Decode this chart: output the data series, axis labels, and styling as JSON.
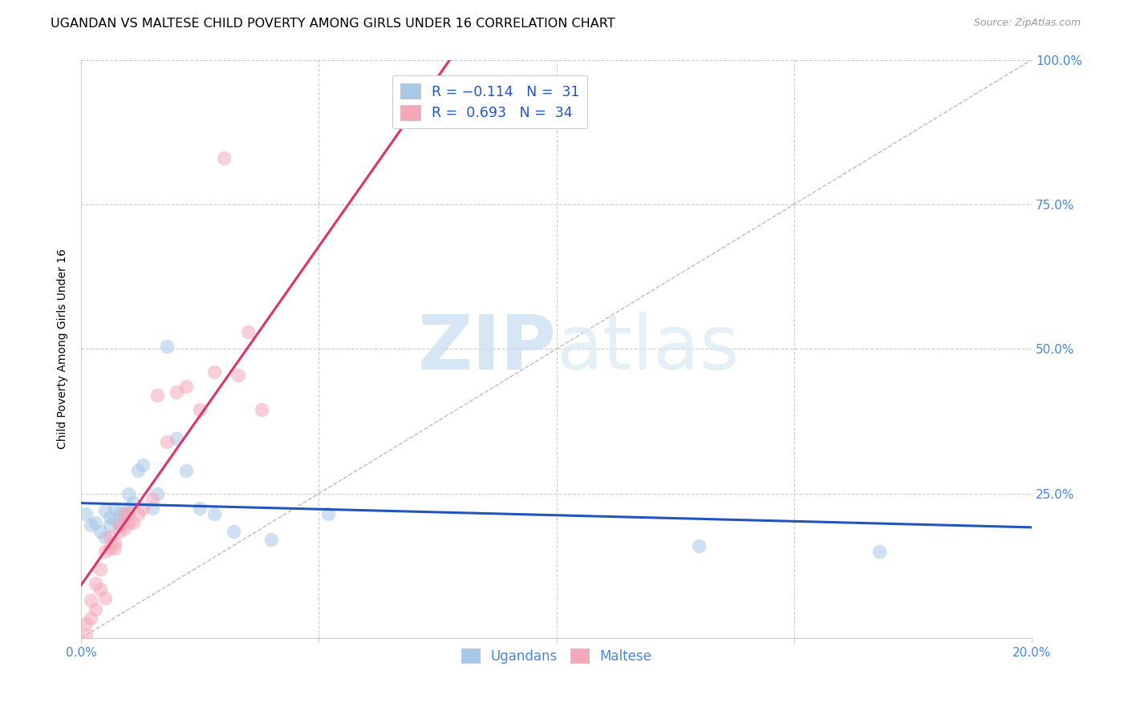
{
  "title": "UGANDAN VS MALTESE CHILD POVERTY AMONG GIRLS UNDER 16 CORRELATION CHART",
  "source": "Source: ZipAtlas.com",
  "ylabel": "Child Poverty Among Girls Under 16",
  "xlim": [
    0.0,
    0.2
  ],
  "ylim": [
    0.0,
    1.0
  ],
  "xticks": [
    0.0,
    0.05,
    0.1,
    0.15,
    0.2
  ],
  "yticks": [
    0.0,
    0.25,
    0.5,
    0.75,
    1.0
  ],
  "xticklabels": [
    "0.0%",
    "",
    "",
    "",
    "20.0%"
  ],
  "yticklabels_right": [
    "",
    "25.0%",
    "50.0%",
    "75.0%",
    "100.0%"
  ],
  "blue_color": "#A8C8E8",
  "pink_color": "#F4A8B8",
  "blue_line_color": "#2255BB",
  "pink_line_color": "#DD3366",
  "legend_text_color": "#2255BB",
  "blue_R": -0.114,
  "pink_R": 0.693,
  "ugandan_x": [
    0.001,
    0.002,
    0.003,
    0.004,
    0.005,
    0.005,
    0.006,
    0.006,
    0.007,
    0.007,
    0.008,
    0.008,
    0.009,
    0.009,
    0.01,
    0.01,
    0.011,
    0.012,
    0.013,
    0.015,
    0.016,
    0.018,
    0.02,
    0.022,
    0.025,
    0.028,
    0.032,
    0.04,
    0.052,
    0.13,
    0.168
  ],
  "ugandan_y": [
    0.215,
    0.195,
    0.2,
    0.185,
    0.175,
    0.22,
    0.21,
    0.195,
    0.205,
    0.225,
    0.215,
    0.195,
    0.205,
    0.215,
    0.225,
    0.25,
    0.235,
    0.29,
    0.3,
    0.225,
    0.25,
    0.505,
    0.345,
    0.29,
    0.225,
    0.215,
    0.185,
    0.17,
    0.215,
    0.16,
    0.15
  ],
  "maltese_x": [
    0.001,
    0.001,
    0.002,
    0.002,
    0.003,
    0.003,
    0.004,
    0.004,
    0.005,
    0.005,
    0.006,
    0.006,
    0.007,
    0.007,
    0.008,
    0.008,
    0.009,
    0.009,
    0.01,
    0.01,
    0.011,
    0.012,
    0.013,
    0.015,
    0.016,
    0.018,
    0.02,
    0.022,
    0.025,
    0.028,
    0.03,
    0.033,
    0.035,
    0.038
  ],
  "maltese_y": [
    0.005,
    0.025,
    0.035,
    0.065,
    0.05,
    0.095,
    0.085,
    0.12,
    0.07,
    0.15,
    0.155,
    0.175,
    0.155,
    0.165,
    0.185,
    0.195,
    0.19,
    0.215,
    0.2,
    0.215,
    0.2,
    0.215,
    0.225,
    0.24,
    0.42,
    0.34,
    0.425,
    0.435,
    0.395,
    0.46,
    0.83,
    0.455,
    0.53,
    0.395
  ],
  "marker_size": 160,
  "alpha": 0.55,
  "watermark_zip": "ZIP",
  "watermark_atlas": "atlas",
  "bg_color": "#FFFFFF",
  "grid_color": "#CCCCCC",
  "tick_color": "#4488DD",
  "title_fontsize": 11.5,
  "axis_label_fontsize": 10,
  "tick_fontsize": 11,
  "source_fontsize": 9
}
